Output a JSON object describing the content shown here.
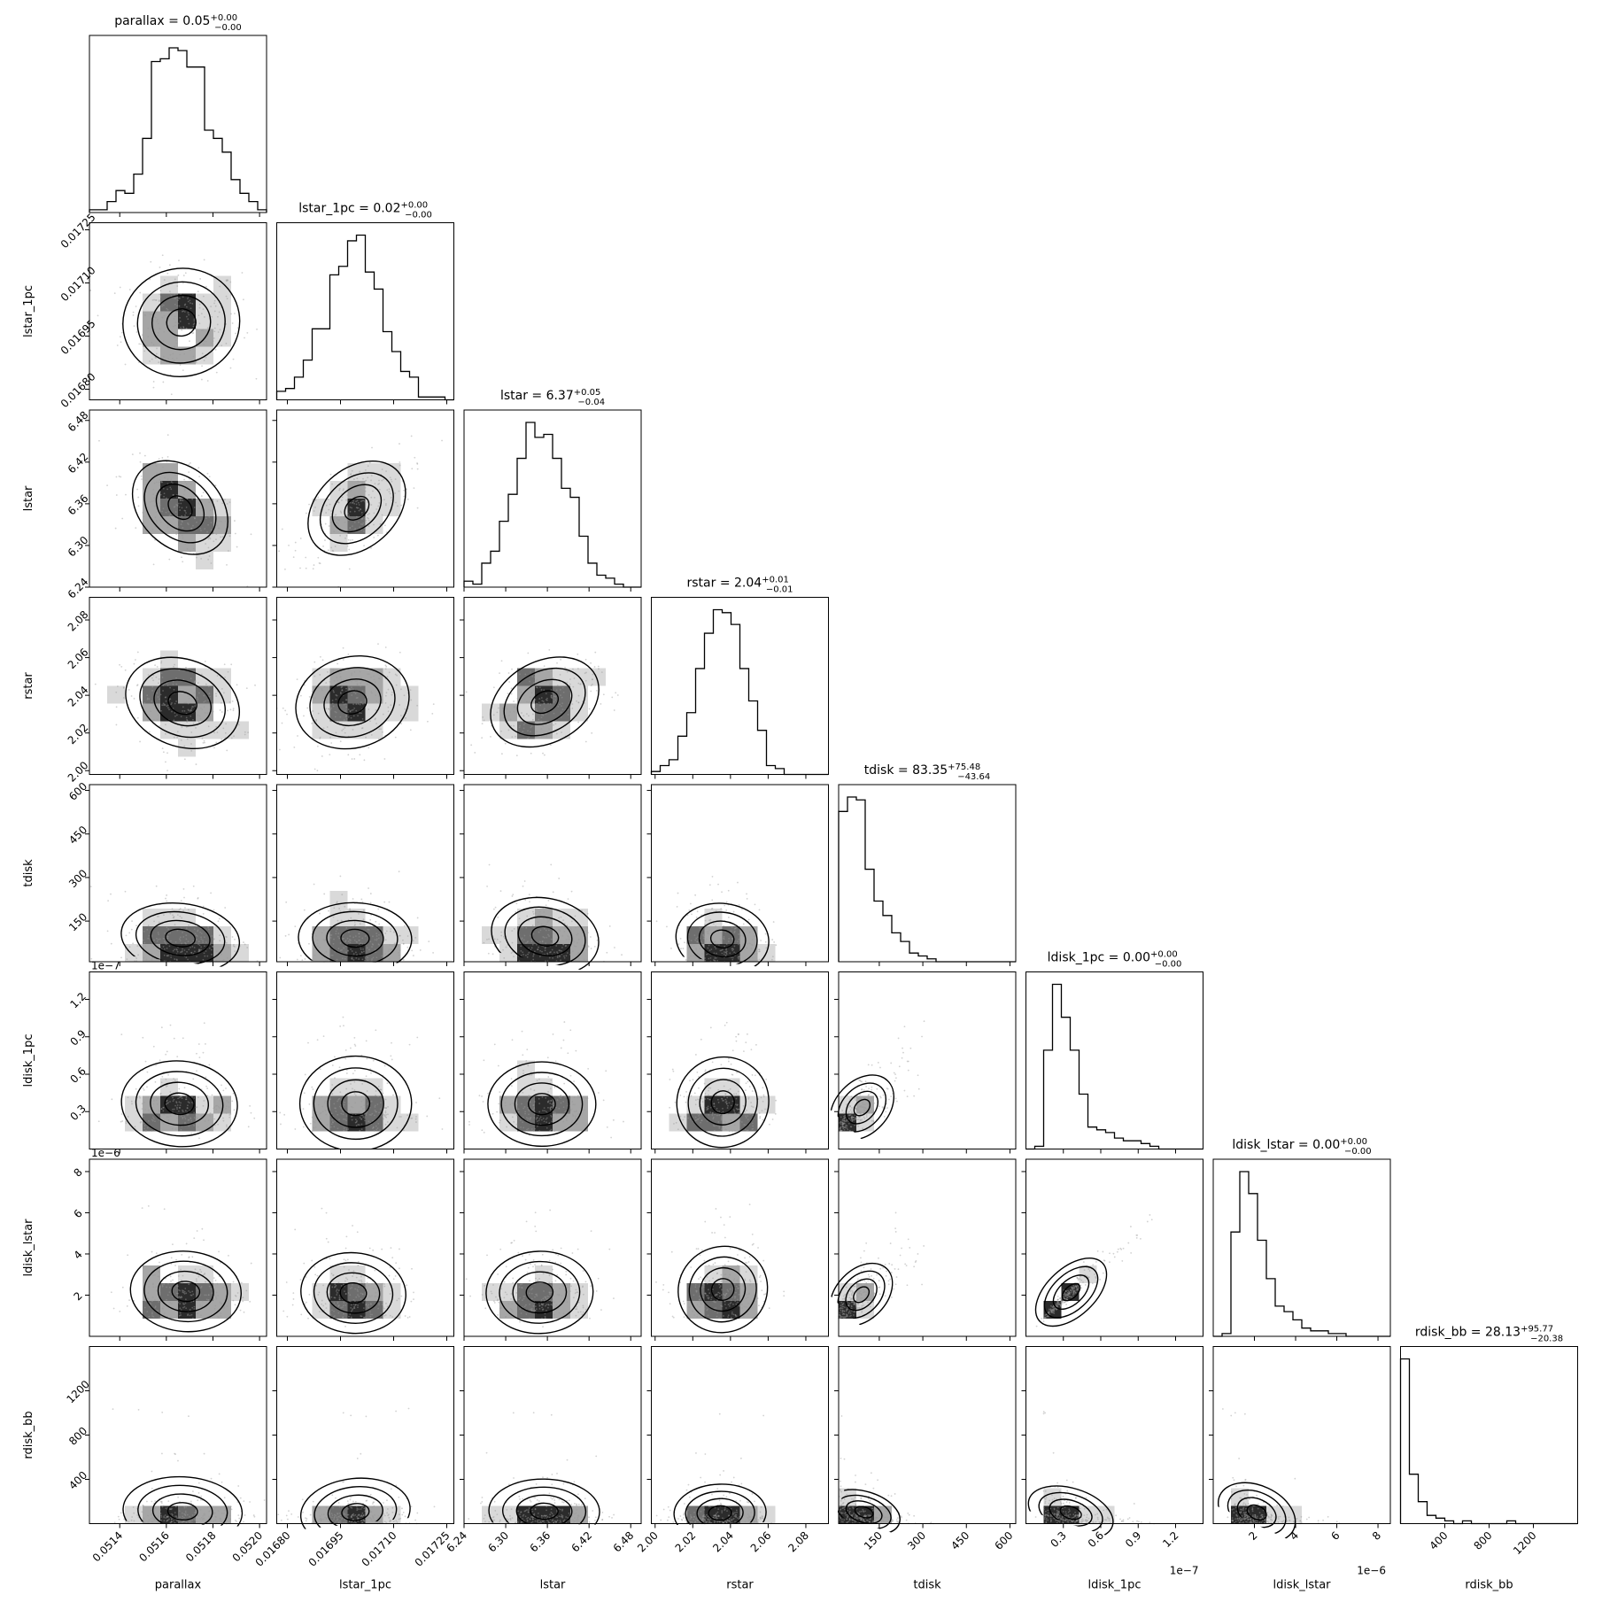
{
  "figure": {
    "type": "corner-plot",
    "background": "#ffffff",
    "hist_color": "#000000",
    "contour_color": "#000000",
    "density_colors": [
      "#ffffff",
      "#d9d9d9",
      "#a6a6a6",
      "#6e6e6e",
      "#2b2b2b"
    ]
  },
  "chart_data": {
    "type": "corner",
    "parameters": [
      {
        "key": "parallax",
        "label": "parallax",
        "title": "parallax = 0.05",
        "title_sup": "+0.00",
        "title_sub": "−0.00",
        "range": [
          0.05127,
          0.05203
        ],
        "ticks": [
          0.0514,
          0.0516,
          0.0518,
          0.052
        ],
        "tick_labels": [
          "0.0514",
          "0.0516",
          "0.0518",
          "0.0520"
        ],
        "offset_label": "",
        "hist": [
          1,
          1,
          4,
          8,
          7,
          14,
          27,
          55,
          56,
          60,
          59,
          53,
          53,
          30,
          27,
          22,
          12,
          7,
          4,
          1
        ]
      },
      {
        "key": "lstar_1pc",
        "label": "lstar_1pc",
        "title": "lstar_1pc = 0.02",
        "title_sup": "+0.00",
        "title_sub": "−0.00",
        "range": [
          0.01677,
          0.01727
        ],
        "ticks": [
          0.0168,
          0.01695,
          0.0171,
          0.01725
        ],
        "tick_labels": [
          "0.01680",
          "0.01695",
          "0.01710",
          "0.01725"
        ],
        "offset_label": "",
        "hist": [
          3,
          4,
          8,
          14,
          25,
          25,
          44,
          47,
          56,
          58,
          45,
          39,
          24,
          17,
          10,
          8,
          1,
          1,
          1,
          0
        ]
      },
      {
        "key": "lstar",
        "label": "lstar",
        "title": "lstar = 6.37",
        "title_sup": "+0.05",
        "title_sub": "−0.04",
        "range": [
          6.24,
          6.495
        ],
        "ticks": [
          6.24,
          6.3,
          6.36,
          6.42,
          6.48
        ],
        "tick_labels": [
          "6.24",
          "6.30",
          "6.36",
          "6.42",
          "6.48"
        ],
        "offset_label": "",
        "hist": [
          2,
          1,
          8,
          12,
          22,
          31,
          43,
          55,
          50,
          51,
          43,
          33,
          30,
          17,
          8,
          4,
          3,
          1,
          0,
          0
        ]
      },
      {
        "key": "rstar",
        "label": "rstar",
        "title": "rstar = 2.04",
        "title_sup": "+0.01",
        "title_sub": "−0.01",
        "range": [
          1.998,
          2.092
        ],
        "ticks": [
          2.0,
          2.02,
          2.04,
          2.06,
          2.08
        ],
        "tick_labels": [
          "2.00",
          "2.02",
          "2.04",
          "2.06",
          "2.08"
        ],
        "offset_label": "",
        "hist": [
          1,
          3,
          5,
          13,
          21,
          36,
          48,
          56,
          55,
          51,
          36,
          25,
          15,
          3,
          2,
          0,
          0,
          0,
          0,
          0
        ]
      },
      {
        "key": "tdisk",
        "label": "tdisk",
        "title": "tdisk = 83.35",
        "title_sup": "+75.48",
        "title_sub": "−43.64",
        "range": [
          10,
          620
        ],
        "ticks": [
          150,
          300,
          450,
          600
        ],
        "tick_labels": [
          "150",
          "300",
          "450",
          "600"
        ],
        "offset_label": "",
        "hist": [
          52,
          57,
          56,
          32,
          21,
          16,
          10,
          7,
          3,
          2,
          1,
          0,
          0,
          0,
          0,
          0,
          0,
          0,
          0,
          0
        ]
      },
      {
        "key": "ldisk_1pc",
        "label": "ldisk_1pc",
        "title": "ldisk_1pc = 0.00",
        "title_sup": "+0.00",
        "title_sub": "−0.00",
        "range": [
          0.0,
          1.42
        ],
        "ticks": [
          0.3,
          0.6,
          0.9,
          1.2
        ],
        "tick_labels": [
          "0.3",
          "0.6",
          "0.9",
          "1.2"
        ],
        "offset_label": "1e−7",
        "hist": [
          0,
          1,
          36,
          60,
          48,
          36,
          20,
          8,
          7,
          6,
          4,
          3,
          3,
          2,
          1,
          0,
          0,
          0,
          0,
          0
        ]
      },
      {
        "key": "ldisk_lstar",
        "label": "ldisk_lstar",
        "title": "ldisk_lstar = 0.00",
        "title_sup": "+0.00",
        "title_sub": "−0.00",
        "range": [
          0.0,
          8.6
        ],
        "ticks": [
          2,
          4,
          6,
          8
        ],
        "tick_labels": [
          "2",
          "4",
          "6",
          "8"
        ],
        "offset_label": "1e−6",
        "hist": [
          0,
          1,
          38,
          60,
          52,
          35,
          21,
          11,
          9,
          6,
          3,
          2,
          2,
          1,
          1,
          0,
          0,
          0,
          0,
          0
        ]
      },
      {
        "key": "rdisk_bb",
        "label": "rdisk_bb",
        "title": "rdisk_bb = 28.13",
        "title_sup": "+95.77",
        "title_sub": "−20.38",
        "range": [
          0,
          1600
        ],
        "ticks": [
          400,
          800,
          1200
        ],
        "tick_labels": [
          "400",
          "800",
          "1200"
        ],
        "offset_label": "",
        "hist": [
          60,
          18,
          8,
          3,
          2,
          1,
          0,
          1,
          0,
          0,
          0,
          0,
          1,
          0,
          0,
          0,
          0,
          0,
          0,
          0
        ]
      }
    ],
    "correlations": [
      [
        1,
        0,
        0,
        0,
        0,
        0,
        0,
        0
      ],
      [
        0.0,
        1,
        0,
        0,
        0,
        0,
        0,
        0
      ],
      [
        -0.6,
        0.6,
        1,
        0,
        0,
        0,
        0,
        0
      ],
      [
        -0.15,
        0.1,
        0.25,
        1,
        0,
        0,
        0,
        0
      ],
      [
        0.0,
        0.0,
        0.0,
        0.0,
        1,
        0,
        0,
        0
      ],
      [
        0.0,
        0.0,
        0.0,
        0.0,
        0.8,
        1,
        0,
        0
      ],
      [
        0.0,
        0.0,
        0.0,
        0.0,
        0.8,
        0.98,
        1,
        0
      ],
      [
        0.0,
        0.0,
        0.0,
        0.0,
        -0.4,
        -0.4,
        -0.4,
        1
      ]
    ],
    "grid": false,
    "legend": "none"
  }
}
